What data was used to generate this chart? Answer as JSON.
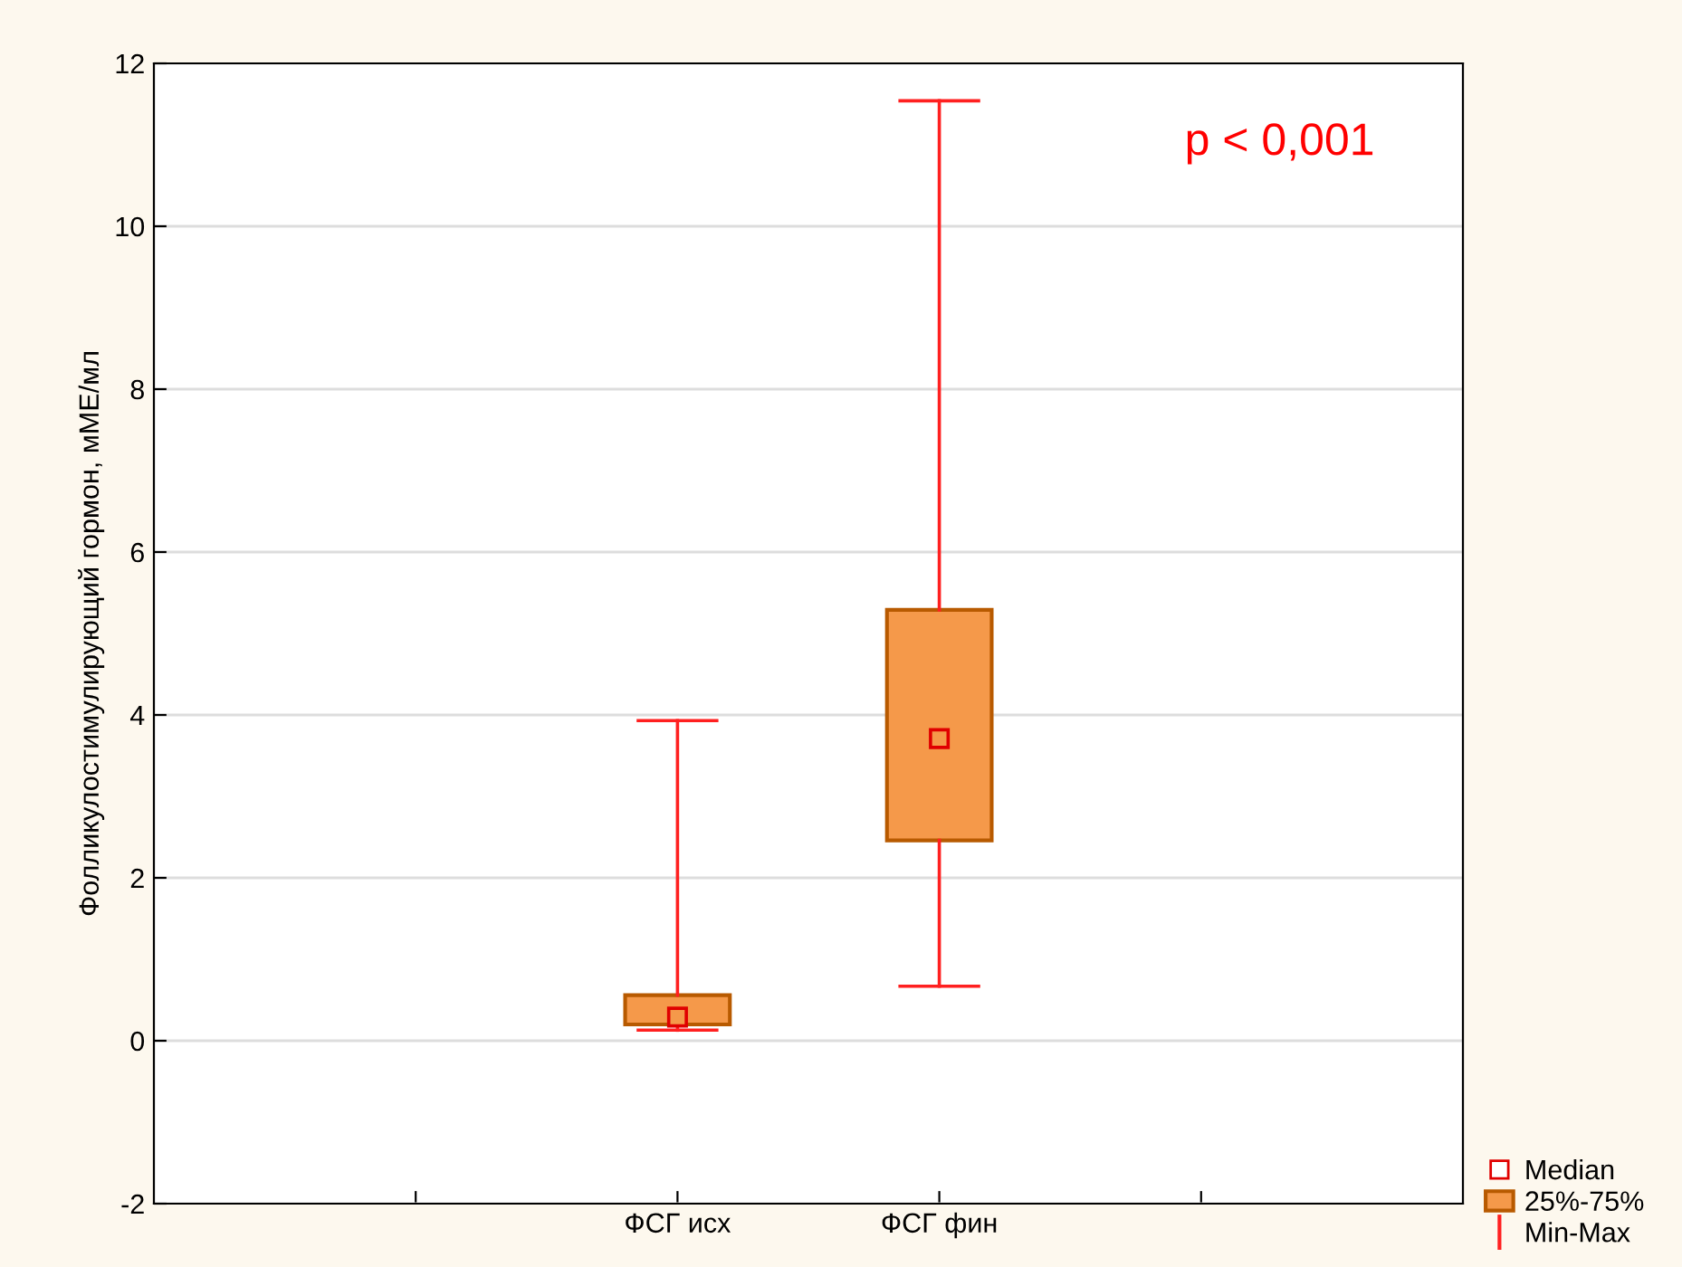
{
  "chart_data": {
    "type": "box",
    "ylabel": "Фолликулостимулирующий гормон, мМЕ/мл",
    "categories": [
      null,
      "ФСГ исх",
      "ФСГ фин",
      null
    ],
    "boxes": [
      null,
      {
        "low": 0.13,
        "q1": 0.2,
        "median": 0.29,
        "q3": 0.56,
        "high": 3.93
      },
      {
        "low": 0.67,
        "q1": 2.46,
        "median": 3.71,
        "q3": 5.29,
        "high": 11.54
      },
      null
    ],
    "color": "#f5994a",
    "marker": "square",
    "ylim": [
      -2,
      12
    ],
    "yticks": [
      -2,
      0,
      2,
      4,
      6,
      8,
      10,
      12
    ],
    "grid": "y",
    "annotations": [
      "p < 0,001",
      "Median",
      "25%-75%",
      "Min-Max"
    ]
  }
}
